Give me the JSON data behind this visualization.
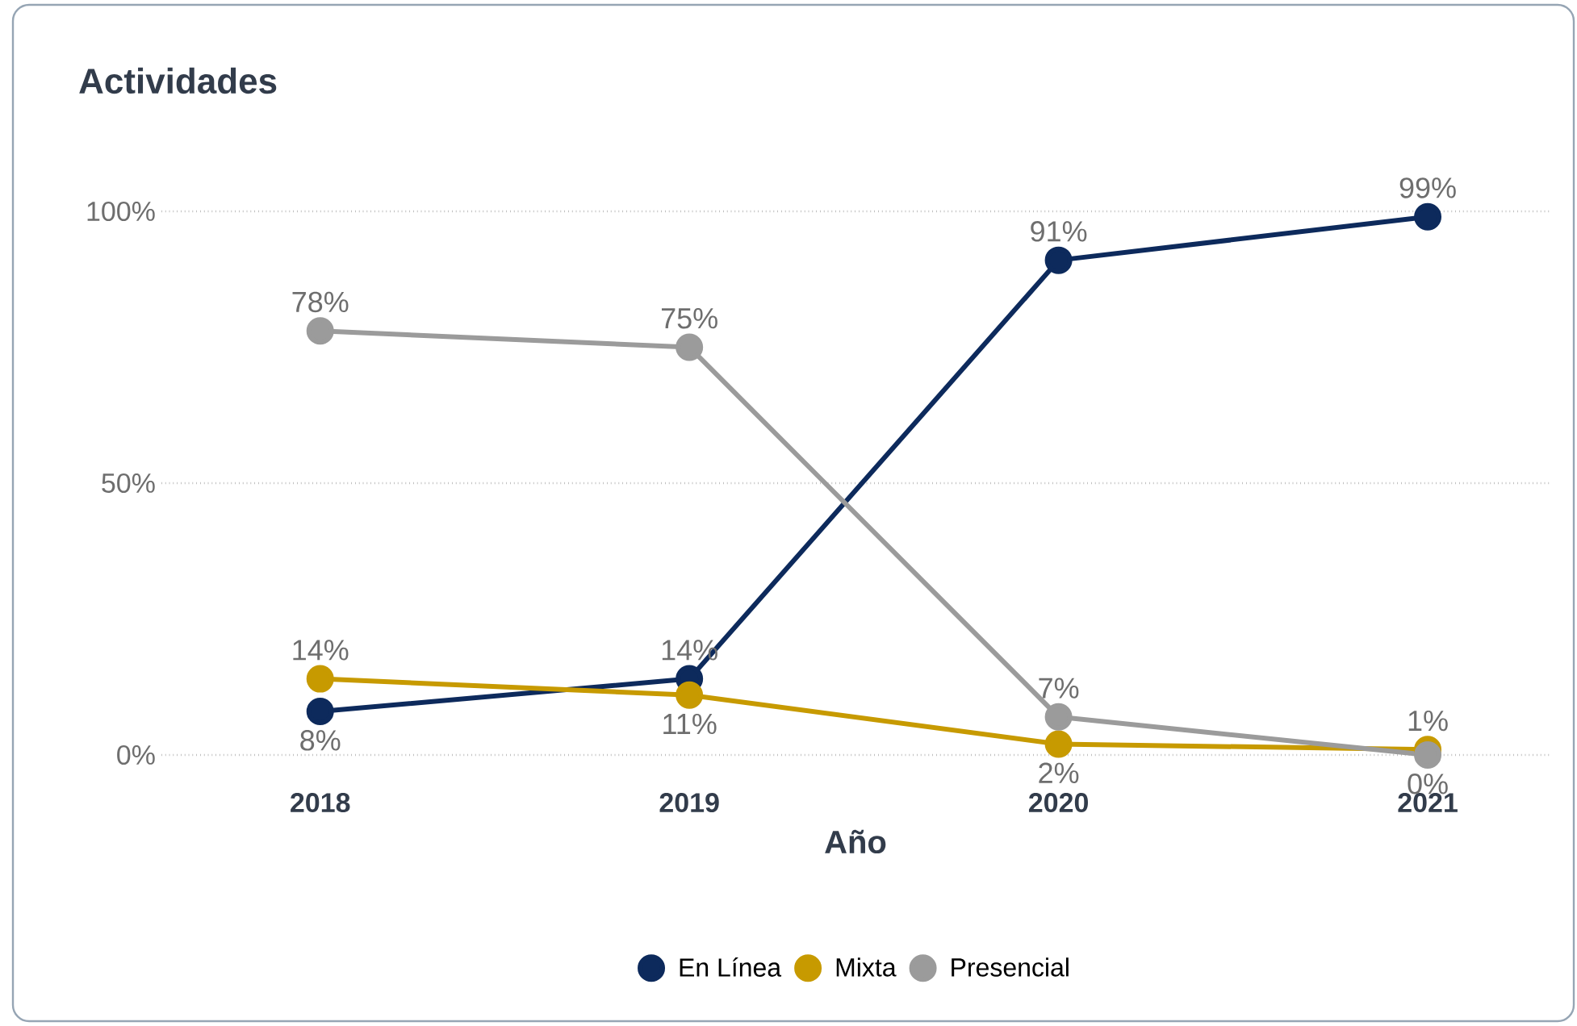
{
  "chart_data": {
    "type": "line",
    "title": "Actividades",
    "xlabel": "Año",
    "categories": [
      "2018",
      "2019",
      "2020",
      "2021"
    ],
    "series": [
      {
        "name": "En Línea",
        "color": "#0d2a5c",
        "values": [
          8,
          14,
          91,
          99
        ],
        "value_labels": [
          "8%",
          "14%",
          "91%",
          "99%"
        ]
      },
      {
        "name": "Mixta",
        "color": "#c79a00",
        "values": [
          14,
          11,
          2,
          1
        ],
        "value_labels": [
          "14%",
          "11%",
          "2%",
          "1%"
        ]
      },
      {
        "name": "Presencial",
        "color": "#9b9b9b",
        "values": [
          78,
          75,
          7,
          0
        ],
        "value_labels": [
          "78%",
          "75%",
          "7%",
          "0%"
        ]
      }
    ],
    "ylim": [
      0,
      100
    ],
    "yticks": [
      {
        "value": 0,
        "label": "0%"
      },
      {
        "value": 50,
        "label": "50%"
      },
      {
        "value": 100,
        "label": "100%"
      }
    ],
    "grid": "y",
    "legend": "bottom",
    "marker": "circle",
    "line_style": "solid"
  }
}
